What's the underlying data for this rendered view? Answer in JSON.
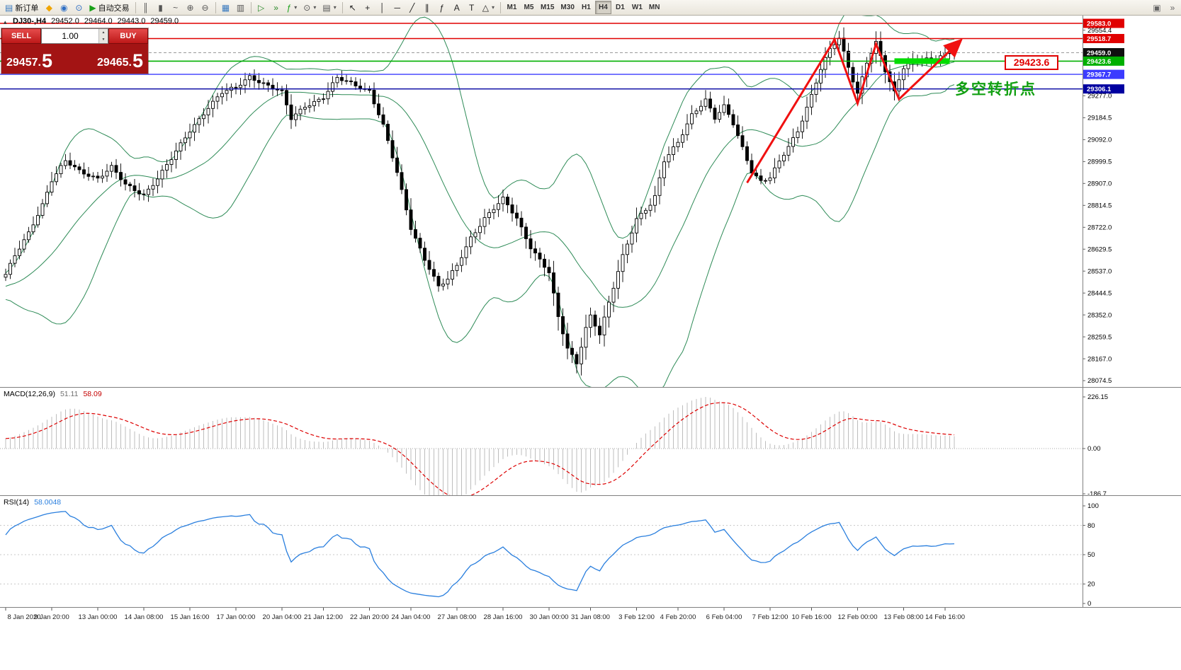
{
  "window": {
    "toolbar": {
      "groups": [
        {
          "name": "trade",
          "items": [
            {
              "name": "new-order",
              "glyph": "▤",
              "color": "#3a7abf",
              "label": "新订单"
            },
            {
              "name": "metaquotes-app",
              "glyph": "◆",
              "color": "#f0a500"
            },
            {
              "name": "mql5-community",
              "glyph": "◉",
              "color": "#2f6fc4"
            },
            {
              "name": "help-info",
              "glyph": "⊙",
              "color": "#2f6fc4"
            },
            {
              "name": "auto-trading",
              "glyph": "▶",
              "color": "#18a018",
              "label": "自动交易"
            }
          ]
        },
        {
          "name": "chart-type",
          "items": [
            {
              "name": "bar-chart",
              "glyph": "║",
              "color": "#555555"
            },
            {
              "name": "candlestick-chart",
              "glyph": "▮",
              "color": "#555555"
            },
            {
              "name": "line-chart",
              "glyph": "~",
              "color": "#555555"
            },
            {
              "name": "zoom-in",
              "glyph": "⊕",
              "color": "#555555"
            },
            {
              "name": "zoom-out",
              "glyph": "⊖",
              "color": "#555555"
            }
          ]
        },
        {
          "name": "windows",
          "items": [
            {
              "name": "tile-windows",
              "glyph": "▦",
              "color": "#3a7abf"
            },
            {
              "name": "data-window",
              "glyph": "▥",
              "color": "#555555"
            }
          ]
        },
        {
          "name": "chart-tools",
          "items": [
            {
              "name": "auto-scroll",
              "glyph": "▷",
              "color": "#2a8a2a"
            },
            {
              "name": "chart-shift",
              "glyph": "»",
              "color": "#2a8a2a"
            },
            {
              "name": "indicators",
              "glyph": "ƒ",
              "color": "#18a018",
              "dropdown": true
            },
            {
              "name": "periods",
              "glyph": "⊙",
              "color": "#555555",
              "dropdown": true
            },
            {
              "name": "templates",
              "glyph": "▤",
              "color": "#555555",
              "dropdown": true
            }
          ]
        },
        {
          "name": "drawing-tools",
          "items": [
            {
              "name": "cursor",
              "glyph": "↖",
              "color": "#222222"
            },
            {
              "name": "crosshair",
              "glyph": "+",
              "color": "#222222"
            },
            {
              "name": "vertical-line",
              "glyph": "│",
              "color": "#222222"
            },
            {
              "name": "horizontal-line",
              "glyph": "─",
              "color": "#222222"
            },
            {
              "name": "trendline",
              "glyph": "╱",
              "color": "#222222"
            },
            {
              "name": "equidistant-channel",
              "glyph": "∥",
              "color": "#222222"
            },
            {
              "name": "fibonacci-retracement",
              "glyph": "ƒ",
              "color": "#222222"
            },
            {
              "name": "text",
              "glyph": "A",
              "color": "#222222"
            },
            {
              "name": "text-label",
              "glyph": "T",
              "color": "#222222"
            },
            {
              "name": "arrows",
              "glyph": "△",
              "color": "#222222",
              "dropdown": true
            }
          ]
        }
      ],
      "timeframes": [
        "M1",
        "M5",
        "M15",
        "M30",
        "H1",
        "H4",
        "D1",
        "W1",
        "MN"
      ],
      "active_timeframe": "H4",
      "right_buttons": [
        {
          "name": "dock-window",
          "glyph": "▣",
          "color": "#666666"
        },
        {
          "name": "more-tools",
          "glyph": "»",
          "color": "#666666"
        }
      ],
      "dropdown_glyph": "▾"
    }
  },
  "icons": {
    "spin_up": "▲",
    "spin_down": "▼",
    "collapse_arrow": "▴"
  },
  "chart": {
    "header": {
      "symbol_period": "DJ30-,H4",
      "open": "29452.0",
      "high": "29464.0",
      "low": "29443.0",
      "close": "29459.0"
    },
    "trade_panel": {
      "sell_label": "SELL",
      "buy_label": "BUY",
      "volume": "1.00",
      "sell_price_int": "29457",
      "sell_price_pip": "5",
      "buy_price_int": "29465",
      "buy_price_pip": "5",
      "decimal_sep": "."
    },
    "annotations": {
      "price_callout": "29423.6",
      "turning_point": "多空转折点"
    }
  },
  "macd_panel": {
    "title": "MACD(12,26,9)",
    "value_main": "51.11",
    "value_signal": "58.09",
    "axis_max": "226.15",
    "axis_zero": "0.00",
    "axis_min": "-186.7"
  },
  "rsi_panel": {
    "title": "RSI(14)",
    "value": "58.0048",
    "levels": [
      100,
      80,
      50,
      20,
      0
    ]
  },
  "chart_data": {
    "type": "candlestick",
    "symbol": "DJ30-",
    "timeframe": "H4",
    "ohlc_current": {
      "open": 29452.0,
      "high": 29464.0,
      "low": 29443.0,
      "close": 29459.0
    },
    "bars_visible": 207,
    "y_axis": {
      "min": 28074.5,
      "max": 29583.0,
      "tick_step": 92.5,
      "plain_ticks": [
        "29554.4",
        "29277.0",
        "29184.5",
        "29092.0",
        "28999.5",
        "28907.0",
        "28814.5",
        "28722.0",
        "28629.5",
        "28537.0",
        "28444.5",
        "28352.0",
        "28259.5",
        "28167.0",
        "28074.5"
      ]
    },
    "price_tags": [
      {
        "text": "29583.0",
        "price": 29583.0,
        "bg": "#e00000"
      },
      {
        "text": "29518.7",
        "price": 29518.7,
        "bg": "#e00000"
      },
      {
        "text": "29459.0",
        "price": 29459.0,
        "bg": "#101010"
      },
      {
        "text": "29423.6",
        "price": 29423.6,
        "bg": "#00b000"
      },
      {
        "text": "29367.7",
        "price": 29367.7,
        "bg": "#3b3bff"
      },
      {
        "text": "29306.1",
        "price": 29306.1,
        "bg": "#0000a0"
      }
    ],
    "h_lines": [
      {
        "price": 29583.0,
        "color": "#e00000",
        "width": 1.4,
        "style": "solid"
      },
      {
        "price": 29518.7,
        "color": "#e00000",
        "width": 1.4,
        "style": "solid"
      },
      {
        "price": 29459.0,
        "color": "#9a9a9a",
        "width": 1,
        "style": "dashed"
      },
      {
        "price": 29423.6,
        "color": "#00b000",
        "width": 1.6,
        "style": "solid"
      },
      {
        "price": 29367.7,
        "color": "#3b3bff",
        "width": 1.4,
        "style": "solid"
      },
      {
        "price": 29306.1,
        "color": "#0000a0",
        "width": 1.4,
        "style": "solid"
      }
    ],
    "x_labels": [
      {
        "bar": 0,
        "text": "8 Jan 2020"
      },
      {
        "bar": 10,
        "text": "9 Jan 20:00"
      },
      {
        "bar": 20,
        "text": "13 Jan 00:00"
      },
      {
        "bar": 30,
        "text": "14 Jan 08:00"
      },
      {
        "bar": 40,
        "text": "15 Jan 16:00"
      },
      {
        "bar": 50,
        "text": "17 Jan 00:00"
      },
      {
        "bar": 60,
        "text": "20 Jan 04:00"
      },
      {
        "bar": 69,
        "text": "21 Jan 12:00"
      },
      {
        "bar": 79,
        "text": "22 Jan 20:00"
      },
      {
        "bar": 88,
        "text": "24 Jan 04:00"
      },
      {
        "bar": 98,
        "text": "27 Jan 08:00"
      },
      {
        "bar": 108,
        "text": "28 Jan 16:00"
      },
      {
        "bar": 118,
        "text": "30 Jan 00:00"
      },
      {
        "bar": 127,
        "text": "31 Jan 08:00"
      },
      {
        "bar": 137,
        "text": "3 Feb 12:00"
      },
      {
        "bar": 146,
        "text": "4 Feb 20:00"
      },
      {
        "bar": 156,
        "text": "6 Feb 04:00"
      },
      {
        "bar": 166,
        "text": "7 Feb 12:00"
      },
      {
        "bar": 175,
        "text": "10 Feb 16:00"
      },
      {
        "bar": 185,
        "text": "12 Feb 00:00"
      },
      {
        "bar": 195,
        "text": "13 Feb 08:00"
      },
      {
        "bar": 204,
        "text": "14 Feb 16:00"
      }
    ],
    "close_anchors": [
      [
        0,
        28520
      ],
      [
        2,
        28600
      ],
      [
        5,
        28700
      ],
      [
        8,
        28820
      ],
      [
        10,
        28920
      ],
      [
        13,
        29000
      ],
      [
        16,
        28960
      ],
      [
        20,
        28930
      ],
      [
        23,
        28975
      ],
      [
        26,
        28900
      ],
      [
        30,
        28860
      ],
      [
        33,
        28930
      ],
      [
        36,
        29010
      ],
      [
        40,
        29130
      ],
      [
        44,
        29230
      ],
      [
        47,
        29290
      ],
      [
        50,
        29310
      ],
      [
        53,
        29360
      ],
      [
        56,
        29330
      ],
      [
        60,
        29290
      ],
      [
        62,
        29180
      ],
      [
        65,
        29235
      ],
      [
        69,
        29270
      ],
      [
        72,
        29350
      ],
      [
        75,
        29330
      ],
      [
        79,
        29300
      ],
      [
        82,
        29150
      ],
      [
        85,
        28950
      ],
      [
        88,
        28720
      ],
      [
        91,
        28590
      ],
      [
        94,
        28470
      ],
      [
        96,
        28500
      ],
      [
        98,
        28560
      ],
      [
        101,
        28680
      ],
      [
        104,
        28760
      ],
      [
        108,
        28840
      ],
      [
        111,
        28760
      ],
      [
        114,
        28640
      ],
      [
        118,
        28530
      ],
      [
        120,
        28340
      ],
      [
        122,
        28210
      ],
      [
        124,
        28150
      ],
      [
        126,
        28300
      ],
      [
        127,
        28350
      ],
      [
        129,
        28270
      ],
      [
        131,
        28400
      ],
      [
        134,
        28600
      ],
      [
        137,
        28760
      ],
      [
        140,
        28820
      ],
      [
        141,
        28850
      ],
      [
        143,
        29000
      ],
      [
        146,
        29080
      ],
      [
        149,
        29200
      ],
      [
        152,
        29260
      ],
      [
        154,
        29180
      ],
      [
        156,
        29230
      ],
      [
        158,
        29160
      ],
      [
        160,
        29060
      ],
      [
        162,
        28960
      ],
      [
        164,
        28915
      ],
      [
        166,
        28930
      ],
      [
        169,
        29030
      ],
      [
        172,
        29130
      ],
      [
        175,
        29280
      ],
      [
        177,
        29390
      ],
      [
        179,
        29470
      ],
      [
        181,
        29520
      ],
      [
        183,
        29400
      ],
      [
        185,
        29290
      ],
      [
        187,
        29420
      ],
      [
        189,
        29500
      ],
      [
        191,
        29380
      ],
      [
        193,
        29290
      ],
      [
        195,
        29400
      ],
      [
        197,
        29430
      ],
      [
        199,
        29440
      ],
      [
        201,
        29425
      ],
      [
        203,
        29445
      ],
      [
        206,
        29459
      ]
    ],
    "warmup_anchors": [
      [
        -30,
        28300
      ],
      [
        -26,
        28420
      ],
      [
        -22,
        28340
      ],
      [
        -18,
        28480
      ],
      [
        -14,
        28420
      ],
      [
        -10,
        28500
      ],
      [
        -6,
        28460
      ],
      [
        -3,
        28500
      ]
    ],
    "indicators": {
      "bollinger": {
        "period": 20,
        "deviation": 2,
        "color": "#2e8b57"
      },
      "macd": {
        "fast": 12,
        "slow": 26,
        "signal": 9,
        "hist_color": "#bdbdbd",
        "signal_color": "#dd0000"
      },
      "rsi": {
        "period": 14,
        "color": "#2a7fde"
      }
    },
    "trend_annotation": {
      "color": "#f01010",
      "width": 3,
      "points": [
        [
          161,
          28910
        ],
        [
          180,
          29515
        ],
        [
          185,
          29245
        ],
        [
          189,
          29496
        ],
        [
          194,
          29263
        ],
        [
          207.5,
          29513
        ]
      ]
    },
    "highlight_segment": {
      "from_bar": 193,
      "to_bar": 205,
      "price": 29423.6,
      "color": "#00dd00",
      "thickness": 8
    }
  }
}
